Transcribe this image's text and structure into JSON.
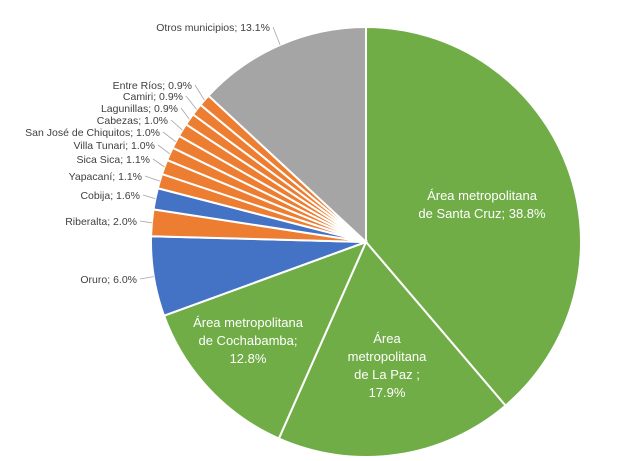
{
  "chart_data": {
    "type": "pie",
    "title": "",
    "slices": [
      {
        "label": "Área metropolitana de Santa Cruz",
        "value": 38.8,
        "label_text": "Área metropolitana de Santa Cruz; 38.8%",
        "color": "#70ad47"
      },
      {
        "label": "Área metropolitana de La Paz",
        "value": 17.9,
        "label_text": "Área metropolitana de La Paz ; 17.9%",
        "color": "#70ad47"
      },
      {
        "label": "Área metropolitana de Cochabamba",
        "value": 12.8,
        "label_text": "Área metropolitana de Cochabamba; 12.8%",
        "color": "#70ad47"
      },
      {
        "label": "Oruro",
        "value": 6.0,
        "label_text": "Oruro; 6.0%",
        "color": "#4472c4"
      },
      {
        "label": "Riberalta",
        "value": 2.0,
        "label_text": "Riberalta; 2.0%",
        "color": "#ed7d31"
      },
      {
        "label": "Cobija",
        "value": 1.6,
        "label_text": "Cobija; 1.6%",
        "color": "#4472c4"
      },
      {
        "label": "Yapacaní",
        "value": 1.1,
        "label_text": "Yapacaní; 1.1%",
        "color": "#ed7d31"
      },
      {
        "label": "Sica Sica",
        "value": 1.1,
        "label_text": "Sica Sica; 1.1%",
        "color": "#ed7d31"
      },
      {
        "label": "Villa Tunari",
        "value": 1.0,
        "label_text": "Villa Tunari; 1.0%",
        "color": "#ed7d31"
      },
      {
        "label": "San José de Chiquitos",
        "value": 1.0,
        "label_text": "San José de Chiquitos; 1.0%",
        "color": "#ed7d31"
      },
      {
        "label": "Cabezas",
        "value": 1.0,
        "label_text": "Cabezas; 1.0%",
        "color": "#ed7d31"
      },
      {
        "label": "Lagunillas",
        "value": 0.9,
        "label_text": "Lagunillas; 0.9%",
        "color": "#ed7d31"
      },
      {
        "label": "Camiri",
        "value": 0.9,
        "label_text": "Camiri; 0.9%",
        "color": "#ed7d31"
      },
      {
        "label": "Entre Ríos",
        "value": 0.9,
        "label_text": "Entre Ríos; 0.9%",
        "color": "#ed7d31"
      },
      {
        "label": "Otros municipios",
        "value": 13.1,
        "label_text": "Otros municipios; 13.1%",
        "color": "#a5a5a5"
      }
    ],
    "legend": "none",
    "start_angle": "12 o'clock, clockwise"
  }
}
